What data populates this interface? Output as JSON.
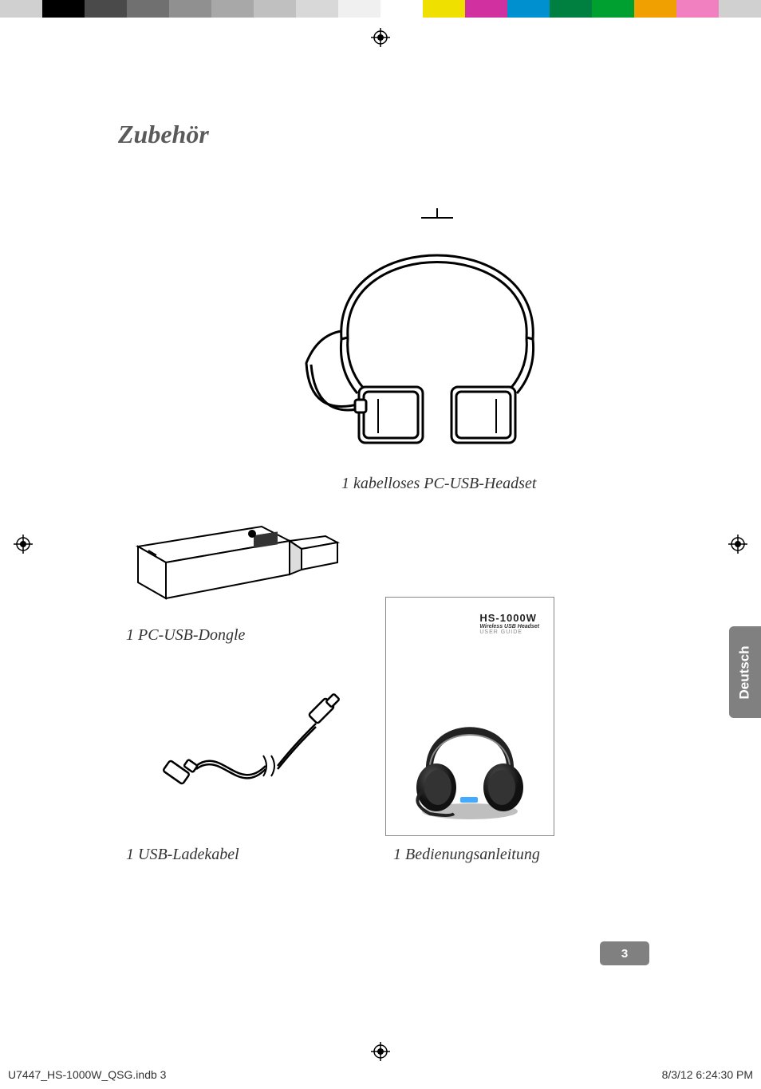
{
  "print": {
    "color_bar": [
      "#d0d0d0",
      "#000000",
      "#4a4a4a",
      "#707070",
      "#909090",
      "#a8a8a8",
      "#c0c0c0",
      "#d8d8d8",
      "#f0f0f0",
      "#ffffff",
      "#f0e000",
      "#d030a0",
      "#0090d0",
      "#008040",
      "#00a030",
      "#f0a000",
      "#f080c0",
      "#d0d0d0"
    ],
    "filename": "U7447_HS-1000W_QSG.indb   3",
    "timestamp": "8/3/12   6:24:30 PM"
  },
  "page": {
    "title": "Zubehör",
    "language_tab": "Deutsch",
    "page_number": "3"
  },
  "items": {
    "headset": {
      "label": "1 kabelloses PC-USB-Headset"
    },
    "dongle": {
      "label": "1 PC-USB-Dongle"
    },
    "cable": {
      "label": "1 USB-Ladekabel"
    },
    "guide": {
      "label": "1 Bedienungsanleitung",
      "cover": {
        "model": "HS-1000W",
        "sub1": "Wireless USB Headset",
        "sub2": "USER GUIDE"
      }
    }
  }
}
